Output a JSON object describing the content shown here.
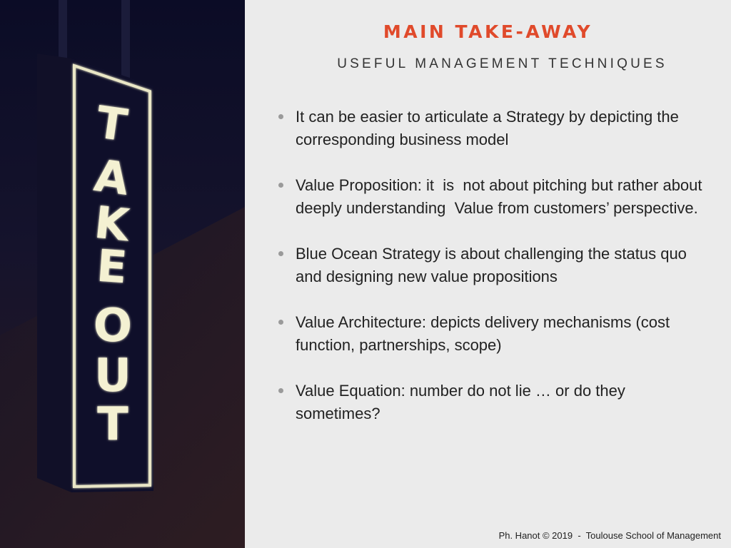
{
  "slide": {
    "title": "MAIN TAKE-AWAY",
    "subtitle": "USEFUL MANAGEMENT TECHNIQUES",
    "bullets": [
      "It can be easier to articulate a Strategy by depicting the corresponding business model",
      "Value Proposition: it  is  not about pitching but rather about deeply understanding  Value from customers’ perspective.",
      "Blue Ocean Strategy is about challenging the status quo and designing new value propositions",
      "Value Architecture: depicts delivery mechanisms (cost function, partnerships, scope)",
      "Value Equation: number do not lie … or do they sometimes?"
    ],
    "footer": "Ph. Hanot © 2019  -  Toulouse School of Management"
  },
  "photo": {
    "sign_letters_top": [
      "T",
      "A",
      "K",
      "E"
    ],
    "sign_letters_bottom": [
      "O",
      "U",
      "T"
    ]
  },
  "colors": {
    "title": "#e04a2b",
    "background": "#ebebeb",
    "photo_bg": "#0d0d24",
    "sign_glow": "#f4f1d2"
  }
}
